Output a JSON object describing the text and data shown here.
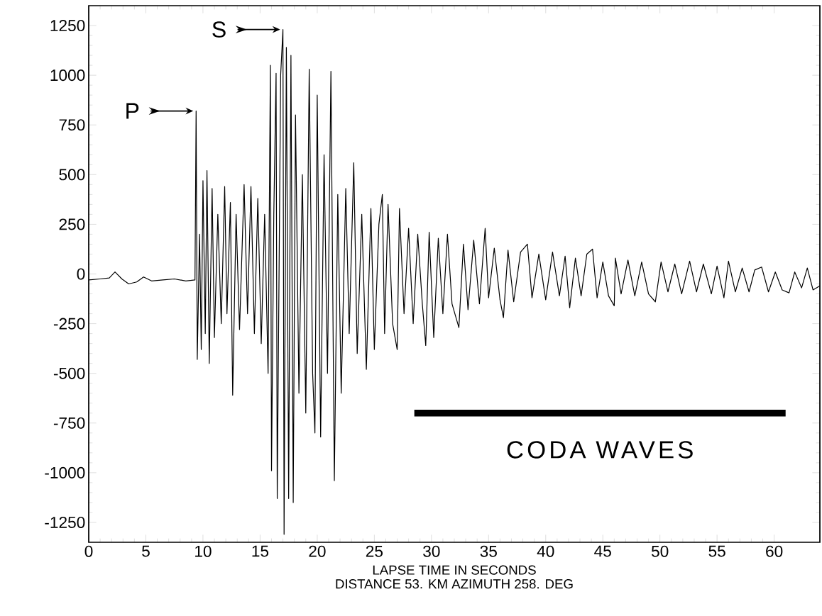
{
  "chart_data": {
    "type": "line",
    "xlabel": "LAPSE TIME IN SECONDS",
    "xlim": [
      0,
      64
    ],
    "ylim": [
      -1350,
      1350
    ],
    "xticks": [
      0,
      5,
      10,
      15,
      20,
      25,
      30,
      35,
      40,
      45,
      50,
      55,
      60
    ],
    "yticks": [
      -1250,
      -1000,
      -750,
      -500,
      -250,
      0,
      250,
      500,
      750,
      1000,
      1250
    ],
    "marker": "none",
    "line_style": "solid",
    "series": [
      {
        "color": "#000000",
        "x": [
          0,
          1,
          1.8,
          2.3,
          2.9,
          3.5,
          4.2,
          4.8,
          5.5,
          6.5,
          7.5,
          8.5,
          9.3,
          9.4,
          9.5,
          9.7,
          9.85,
          10.0,
          10.2,
          10.35,
          10.55,
          10.8,
          11.0,
          11.3,
          11.6,
          11.9,
          12.1,
          12.4,
          12.6,
          12.9,
          13.2,
          13.6,
          13.9,
          14.2,
          14.5,
          14.8,
          15.1,
          15.4,
          15.7,
          15.9,
          16.0,
          16.2,
          16.4,
          16.5,
          16.8,
          17.0,
          17.1,
          17.3,
          17.5,
          17.7,
          17.9,
          18.1,
          18.4,
          18.7,
          19.0,
          19.3,
          19.6,
          19.8,
          20.0,
          20.3,
          20.6,
          20.9,
          21.2,
          21.5,
          21.8,
          22.1,
          22.5,
          22.8,
          23.2,
          23.5,
          23.9,
          24.3,
          24.7,
          25.0,
          25.4,
          25.7,
          25.9,
          26.2,
          26.6,
          27.0,
          27.2,
          27.6,
          28.0,
          28.4,
          28.8,
          29.2,
          29.5,
          29.8,
          30.2,
          30.6,
          31.0,
          31.4,
          31.8,
          32.4,
          32.8,
          33.2,
          33.7,
          34.2,
          34.7,
          35.0,
          35.5,
          36.0,
          36.3,
          36.7,
          37.2,
          37.8,
          38.4,
          38.8,
          39.4,
          40.0,
          40.6,
          41.2,
          41.7,
          42.1,
          42.6,
          43.1,
          43.6,
          44.1,
          44.5,
          45.0,
          45.5,
          46.0,
          46.1,
          46.6,
          47.2,
          47.8,
          48.4,
          49.0,
          49.6,
          50.1,
          50.7,
          51.3,
          51.9,
          52.6,
          53.2,
          53.8,
          54.5,
          55.0,
          55.6,
          56.0,
          56.6,
          57.2,
          57.8,
          58.3,
          58.9,
          59.5,
          60.1,
          60.7,
          61.3,
          61.8,
          62.4,
          62.9,
          63.4,
          64.0
        ],
        "values": [
          -30,
          -25,
          -20,
          10,
          -25,
          -50,
          -40,
          -15,
          -35,
          -30,
          -25,
          -35,
          -30,
          820,
          -430,
          200,
          -380,
          470,
          -300,
          520,
          -450,
          430,
          -320,
          300,
          -250,
          440,
          -200,
          360,
          -610,
          300,
          -280,
          450,
          -200,
          440,
          -300,
          380,
          -350,
          300,
          -500,
          1050,
          -990,
          300,
          1010,
          -1130,
          1000,
          1230,
          -1310,
          1140,
          -1130,
          1100,
          -1150,
          800,
          -600,
          500,
          -700,
          1030,
          -500,
          -800,
          900,
          -820,
          600,
          -500,
          1020,
          -1040,
          400,
          -600,
          430,
          -300,
          560,
          -400,
          300,
          -480,
          330,
          -380,
          250,
          400,
          -300,
          350,
          -250,
          -380,
          330,
          -200,
          230,
          -250,
          200,
          -150,
          -360,
          210,
          -320,
          180,
          -200,
          200,
          -150,
          -270,
          150,
          -180,
          170,
          -150,
          230,
          -120,
          130,
          -130,
          -220,
          120,
          -140,
          110,
          150,
          -120,
          100,
          -130,
          110,
          -110,
          90,
          -170,
          80,
          -110,
          100,
          125,
          -120,
          60,
          -110,
          -160,
          80,
          -100,
          70,
          -110,
          60,
          -100,
          -140,
          60,
          -90,
          50,
          -100,
          65,
          -90,
          50,
          -100,
          40,
          -120,
          65,
          -90,
          30,
          -90,
          20,
          35,
          -90,
          10,
          -80,
          -95,
          10,
          -70,
          30,
          -80,
          -60
        ]
      },
      {
        "type": "line",
        "name": "CODA WAVES",
        "color": "#000000",
        "x": [
          28.5,
          61
        ],
        "values": [
          -700,
          -700
        ]
      }
    ],
    "annotations": [
      {
        "text": "P",
        "x": 9.4,
        "y": 820
      },
      {
        "text": "S",
        "x": 17,
        "y": 1230
      },
      "DISTANCE 53. KM AZIMUTH 258. DEG"
    ]
  }
}
